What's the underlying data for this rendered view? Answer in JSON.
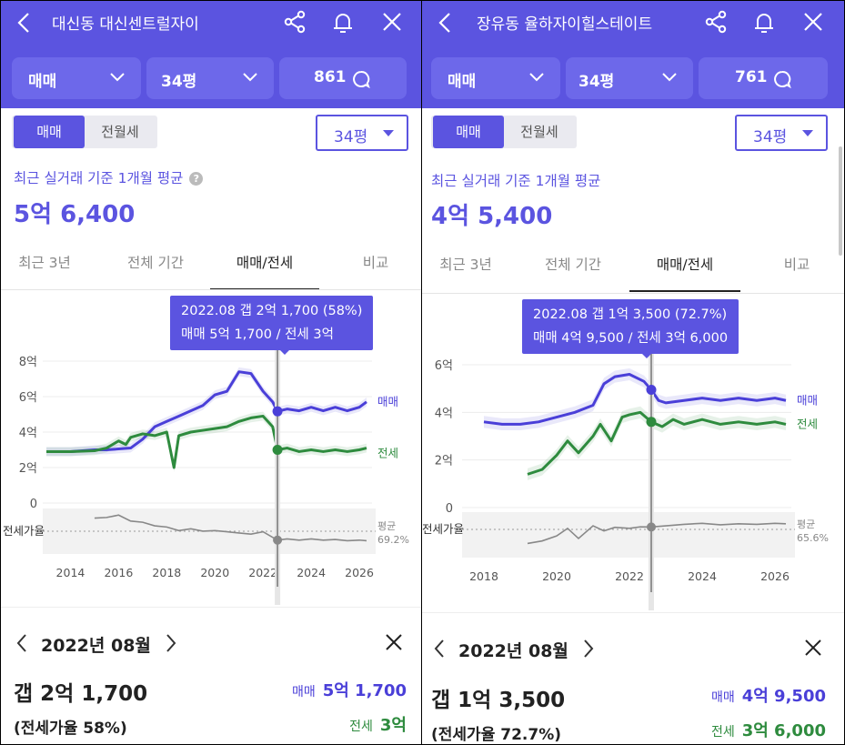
{
  "left": {
    "header": {
      "title": "대신동 대신센트럴자이",
      "filter_trade": "매매",
      "filter_size": "34평",
      "listing_count": "861"
    },
    "toggle": {
      "sale": "매매",
      "jeonse": "전월세"
    },
    "size_select": "34평",
    "avg_label": "최근 실거래 기준 1개월 평균",
    "avg_value": "5억 6,400",
    "tabs": [
      "최근 3년",
      "전체 기간",
      "매매/전세",
      "비교"
    ],
    "active_tab": 2,
    "tooltip": {
      "line1": "2022.08  갭 2억 1,700 (58%)",
      "line2": "매매 5억 1,700 / 전세 3억"
    },
    "chart_data": {
      "type": "line",
      "x_ticks": [
        "2014",
        "2016",
        "2018",
        "2020",
        "2022",
        "2024",
        "2026"
      ],
      "y_ticks": [
        "8억",
        "6억",
        "4억",
        "2억",
        "0"
      ],
      "ylim": [
        0,
        8
      ],
      "y_unit": "억",
      "series": [
        {
          "name": "매매",
          "color": "#4a3fd8",
          "x": [
            2013.0,
            2014.0,
            2015.0,
            2015.5,
            2016.0,
            2016.5,
            2017.0,
            2017.5,
            2018.0,
            2018.5,
            2019.0,
            2019.5,
            2020.0,
            2020.5,
            2021.0,
            2021.5,
            2022.0,
            2022.4,
            2022.6,
            2023.0,
            2023.5,
            2024.0,
            2024.5,
            2025.0,
            2025.5,
            2026.0,
            2026.3
          ],
          "y": [
            2.9,
            2.9,
            3.0,
            3.0,
            3.05,
            3.1,
            3.6,
            4.3,
            4.6,
            4.9,
            5.2,
            5.5,
            6.1,
            6.3,
            7.4,
            7.3,
            6.3,
            5.7,
            5.17,
            5.3,
            5.2,
            5.4,
            5.2,
            5.4,
            5.2,
            5.4,
            5.7
          ]
        },
        {
          "name": "전세",
          "color": "#2e8b3e",
          "x": [
            2013.0,
            2014.0,
            2015.0,
            2015.5,
            2016.0,
            2016.3,
            2016.5,
            2017.0,
            2017.5,
            2018.0,
            2018.3,
            2018.5,
            2019.0,
            2019.5,
            2020.0,
            2020.5,
            2021.0,
            2021.5,
            2022.0,
            2022.4,
            2022.6,
            2023.0,
            2023.5,
            2024.0,
            2024.5,
            2025.0,
            2025.5,
            2026.0,
            2026.3
          ],
          "y": [
            2.9,
            2.9,
            2.95,
            3.1,
            3.5,
            3.3,
            3.7,
            3.9,
            3.8,
            4.0,
            2.0,
            3.8,
            4.0,
            4.1,
            4.2,
            4.3,
            4.6,
            4.8,
            4.9,
            4.3,
            3.0,
            3.1,
            2.9,
            3.0,
            2.9,
            3.0,
            2.9,
            3.0,
            3.1
          ]
        }
      ],
      "ratio_label": "전세가율",
      "ratio_avg_label": "평균",
      "ratio_avg_value": "69.2%",
      "ratio_series": {
        "name": "전세가율",
        "color": "#888888",
        "x": [
          2015.0,
          2015.5,
          2016.0,
          2016.5,
          2017.0,
          2017.5,
          2018.0,
          2018.5,
          2019.0,
          2019.5,
          2020.0,
          2020.5,
          2021.0,
          2021.5,
          2022.0,
          2022.6,
          2023.0,
          2023.5,
          2024.0,
          2024.5,
          2025.0,
          2025.5,
          2026.0,
          2026.3
        ],
        "y": [
          95,
          96,
          100,
          90,
          88,
          82,
          80,
          74,
          77,
          73,
          74,
          72,
          70,
          68,
          72,
          58,
          60,
          58,
          60,
          58,
          59,
          57,
          58,
          57
        ]
      },
      "selected_x": 2022.6
    },
    "detail": {
      "month": "2022년 08월",
      "gap": "갭 2억 1,700",
      "ratio": "(전세가율 58%)",
      "sale_label": "매매",
      "sale_value": "5억 1,700",
      "jeonse_label": "전세",
      "jeonse_value": "3억"
    }
  },
  "right": {
    "header": {
      "title": "장유동 율하자이힐스테이트",
      "filter_trade": "매매",
      "filter_size": "34평",
      "listing_count": "761"
    },
    "toggle": {
      "sale": "매매",
      "jeonse": "전월세"
    },
    "size_select": "34평",
    "avg_label": "최근 실거래 기준 1개월 평균",
    "avg_value": "4억 5,400",
    "tabs": [
      "최근 3년",
      "전체 기간",
      "매매/전세",
      "비교"
    ],
    "active_tab": 2,
    "tooltip": {
      "line1": "2022.08  갭 1억 3,500 (72.7%)",
      "line2": "매매 4억 9,500 / 전세 3억 6,000"
    },
    "chart_data": {
      "type": "line",
      "x_ticks": [
        "2018",
        "2020",
        "2022",
        "2024",
        "2026"
      ],
      "y_ticks": [
        "6억",
        "4억",
        "2억",
        "0"
      ],
      "ylim": [
        0,
        6
      ],
      "y_unit": "억",
      "series": [
        {
          "name": "매매",
          "color": "#4a3fd8",
          "x": [
            2018.0,
            2018.5,
            2019.0,
            2019.5,
            2020.0,
            2020.5,
            2021.0,
            2021.3,
            2021.6,
            2022.0,
            2022.4,
            2022.6,
            2022.8,
            2023.0,
            2023.5,
            2024.0,
            2024.5,
            2025.0,
            2025.5,
            2026.0,
            2026.3
          ],
          "y": [
            3.6,
            3.5,
            3.5,
            3.6,
            3.8,
            4.0,
            4.3,
            5.2,
            5.5,
            5.6,
            5.3,
            4.95,
            4.5,
            4.4,
            4.5,
            4.6,
            4.5,
            4.6,
            4.5,
            4.6,
            4.5
          ]
        },
        {
          "name": "전세",
          "color": "#2e8b3e",
          "x": [
            2019.2,
            2019.6,
            2020.0,
            2020.3,
            2020.6,
            2021.0,
            2021.2,
            2021.5,
            2021.8,
            2022.0,
            2022.3,
            2022.6,
            2022.9,
            2023.2,
            2023.5,
            2024.0,
            2024.5,
            2025.0,
            2025.5,
            2026.0,
            2026.3
          ],
          "y": [
            1.4,
            1.6,
            2.2,
            2.8,
            2.3,
            3.0,
            3.5,
            2.8,
            3.8,
            3.9,
            4.0,
            3.6,
            3.4,
            3.7,
            3.5,
            3.7,
            3.5,
            3.6,
            3.5,
            3.6,
            3.5
          ]
        }
      ],
      "ratio_label": "전세가율",
      "ratio_avg_label": "평균",
      "ratio_avg_value": "65.6%",
      "ratio_series": {
        "name": "전세가율",
        "color": "#888888",
        "x": [
          2019.2,
          2019.6,
          2020.0,
          2020.3,
          2020.6,
          2021.0,
          2021.3,
          2021.6,
          2022.0,
          2022.3,
          2022.6,
          2023.0,
          2023.5,
          2024.0,
          2024.5,
          2025.0,
          2025.5,
          2026.0,
          2026.3
        ],
        "y": [
          40,
          45,
          55,
          70,
          50,
          75,
          65,
          72,
          70,
          73,
          72.7,
          75,
          78,
          80,
          77,
          79,
          78,
          80,
          79
        ]
      },
      "selected_x": 2022.6
    },
    "detail": {
      "month": "2022년 08월",
      "gap": "갭 1억 3,500",
      "ratio": "(전세가율 72.7%)",
      "sale_label": "매매",
      "sale_value": "4억 9,500",
      "jeonse_label": "전세",
      "jeonse_value": "3억 6,000"
    }
  }
}
